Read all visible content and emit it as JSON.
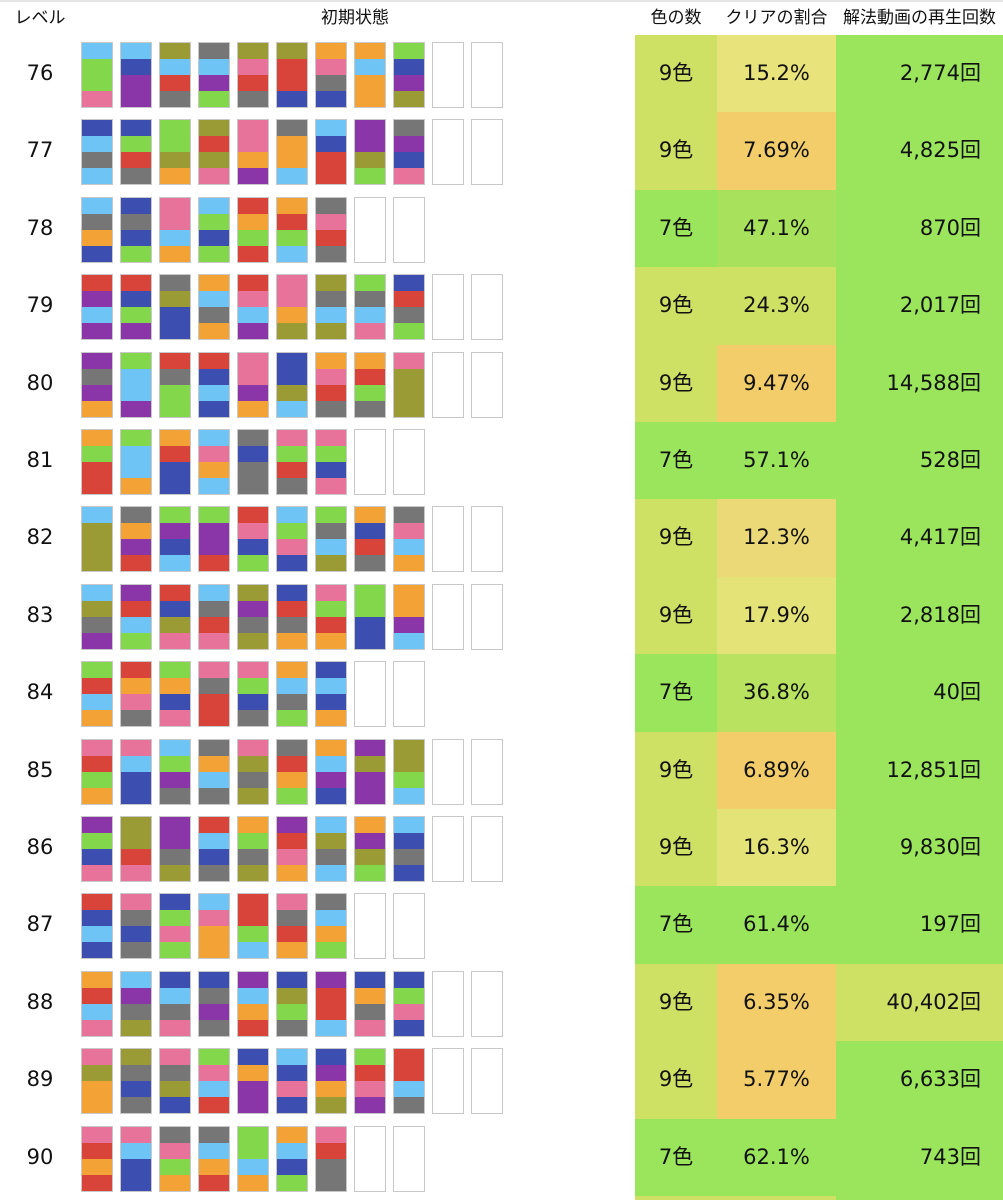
{
  "headers": {
    "level": "レベル",
    "initial_state": "初期状態",
    "colors": "色の数",
    "clear_rate": "クリアの割合",
    "video_views": "解法動画の再生回数"
  },
  "palette": {
    "sky": "#6ec5f5",
    "lime": "#82d74b",
    "pink": "#e8739a",
    "purple": "#8a35a8",
    "blue": "#3c4fb0",
    "olive": "#9a9b34",
    "red": "#d8443a",
    "gray": "#767676",
    "orange": "#f3a235"
  },
  "rows": [
    {
      "level": "76",
      "colors_count": "9色",
      "clear_rate": "15.2%",
      "video_views": "2,774回",
      "bg": [
        "#cfe165",
        "#e8e37a",
        "#9be55c"
      ],
      "tubes": [
        [
          "pink",
          "lime",
          "lime",
          "sky"
        ],
        [
          "purple",
          "purple",
          "blue",
          "sky"
        ],
        [
          "gray",
          "red",
          "sky",
          "olive"
        ],
        [
          "lime",
          "purple",
          "sky",
          "gray"
        ],
        [
          "gray",
          "red",
          "pink",
          "olive"
        ],
        [
          "blue",
          "red",
          "red",
          "olive"
        ],
        [
          "blue",
          "gray",
          "pink",
          "orange"
        ],
        [
          "orange",
          "orange",
          "sky",
          "orange"
        ],
        [
          "olive",
          "purple",
          "blue",
          "lime"
        ],
        [],
        []
      ]
    },
    {
      "level": "77",
      "colors_count": "9色",
      "clear_rate": "7.69%",
      "video_views": "4,825回",
      "bg": [
        "#cfe165",
        "#f2cd6a",
        "#9be55c"
      ],
      "tubes": [
        [
          "sky",
          "gray",
          "sky",
          "blue"
        ],
        [
          "gray",
          "red",
          "lime",
          "blue"
        ],
        [
          "orange",
          "olive",
          "lime",
          "lime"
        ],
        [
          "pink",
          "olive",
          "red",
          "olive"
        ],
        [
          "purple",
          "orange",
          "pink",
          "pink"
        ],
        [
          "sky",
          "orange",
          "orange",
          "gray"
        ],
        [
          "red",
          "red",
          "blue",
          "sky"
        ],
        [
          "lime",
          "olive",
          "purple",
          "purple"
        ],
        [
          "pink",
          "blue",
          "purple",
          "gray"
        ],
        [],
        []
      ]
    },
    {
      "level": "78",
      "colors_count": "7色",
      "clear_rate": "47.1%",
      "video_views": "870回",
      "bg": [
        "#9be55c",
        "#a8e25c",
        "#9be55c"
      ],
      "tubes": [
        [
          "blue",
          "orange",
          "gray",
          "sky"
        ],
        [
          "lime",
          "blue",
          "gray",
          "blue"
        ],
        [
          "orange",
          "sky",
          "pink",
          "pink"
        ],
        [
          "lime",
          "blue",
          "lime",
          "sky"
        ],
        [
          "red",
          "lime",
          "orange",
          "red"
        ],
        [
          "sky",
          "lime",
          "red",
          "orange"
        ],
        [
          "gray",
          "red",
          "pink",
          "gray"
        ],
        [],
        []
      ]
    },
    {
      "level": "79",
      "colors_count": "9色",
      "clear_rate": "24.3%",
      "video_views": "2,017回",
      "bg": [
        "#cfe165",
        "#cfe165",
        "#9be55c"
      ],
      "tubes": [
        [
          "purple",
          "sky",
          "purple",
          "red"
        ],
        [
          "purple",
          "lime",
          "blue",
          "red"
        ],
        [
          "blue",
          "blue",
          "olive",
          "gray"
        ],
        [
          "orange",
          "gray",
          "sky",
          "orange"
        ],
        [
          "purple",
          "sky",
          "pink",
          "red"
        ],
        [
          "olive",
          "orange",
          "pink",
          "pink"
        ],
        [
          "olive",
          "sky",
          "gray",
          "olive"
        ],
        [
          "pink",
          "sky",
          "gray",
          "lime"
        ],
        [
          "lime",
          "gray",
          "red",
          "blue"
        ],
        [],
        []
      ]
    },
    {
      "level": "80",
      "colors_count": "9色",
      "clear_rate": "9.47%",
      "video_views": "14,588回",
      "bg": [
        "#cfe165",
        "#f2cd6a",
        "#9be55c"
      ],
      "tubes": [
        [
          "orange",
          "purple",
          "gray",
          "purple"
        ],
        [
          "purple",
          "sky",
          "sky",
          "lime"
        ],
        [
          "lime",
          "lime",
          "gray",
          "red"
        ],
        [
          "blue",
          "sky",
          "blue",
          "red"
        ],
        [
          "orange",
          "purple",
          "pink",
          "pink"
        ],
        [
          "sky",
          "olive",
          "blue",
          "blue"
        ],
        [
          "gray",
          "red",
          "pink",
          "orange"
        ],
        [
          "gray",
          "lime",
          "red",
          "orange"
        ],
        [
          "olive",
          "olive",
          "olive",
          "pink"
        ],
        [],
        []
      ]
    },
    {
      "level": "81",
      "colors_count": "7色",
      "clear_rate": "57.1%",
      "video_views": "528回",
      "bg": [
        "#9be55c",
        "#9be55c",
        "#9be55c"
      ],
      "tubes": [
        [
          "red",
          "red",
          "lime",
          "orange"
        ],
        [
          "orange",
          "sky",
          "sky",
          "lime"
        ],
        [
          "blue",
          "blue",
          "red",
          "orange"
        ],
        [
          "sky",
          "orange",
          "pink",
          "sky"
        ],
        [
          "gray",
          "gray",
          "blue",
          "gray"
        ],
        [
          "gray",
          "red",
          "lime",
          "pink"
        ],
        [
          "pink",
          "blue",
          "lime",
          "pink"
        ],
        [],
        []
      ]
    },
    {
      "level": "82",
      "colors_count": "9色",
      "clear_rate": "12.3%",
      "video_views": "4,417回",
      "bg": [
        "#cfe165",
        "#ead976",
        "#9be55c"
      ],
      "tubes": [
        [
          "olive",
          "olive",
          "olive",
          "sky"
        ],
        [
          "red",
          "purple",
          "orange",
          "gray"
        ],
        [
          "sky",
          "blue",
          "purple",
          "lime"
        ],
        [
          "red",
          "purple",
          "purple",
          "lime"
        ],
        [
          "lime",
          "blue",
          "pink",
          "red"
        ],
        [
          "blue",
          "pink",
          "lime",
          "sky"
        ],
        [
          "olive",
          "sky",
          "gray",
          "lime"
        ],
        [
          "gray",
          "red",
          "blue",
          "orange"
        ],
        [
          "orange",
          "sky",
          "pink",
          "gray"
        ],
        [],
        []
      ]
    },
    {
      "level": "83",
      "colors_count": "9色",
      "clear_rate": "17.9%",
      "video_views": "2,818回",
      "bg": [
        "#cfe165",
        "#e4e378",
        "#9be55c"
      ],
      "tubes": [
        [
          "purple",
          "gray",
          "olive",
          "sky"
        ],
        [
          "lime",
          "sky",
          "red",
          "purple"
        ],
        [
          "pink",
          "olive",
          "blue",
          "red"
        ],
        [
          "pink",
          "red",
          "gray",
          "sky"
        ],
        [
          "olive",
          "gray",
          "purple",
          "olive"
        ],
        [
          "orange",
          "gray",
          "red",
          "blue"
        ],
        [
          "orange",
          "red",
          "lime",
          "pink"
        ],
        [
          "blue",
          "blue",
          "lime",
          "lime"
        ],
        [
          "sky",
          "purple",
          "orange",
          "orange"
        ],
        [],
        []
      ]
    },
    {
      "level": "84",
      "colors_count": "7色",
      "clear_rate": "36.8%",
      "video_views": "40回",
      "bg": [
        "#9be55c",
        "#b8e260",
        "#9be55c"
      ],
      "tubes": [
        [
          "orange",
          "sky",
          "red",
          "lime"
        ],
        [
          "gray",
          "pink",
          "orange",
          "red"
        ],
        [
          "pink",
          "blue",
          "orange",
          "lime"
        ],
        [
          "red",
          "red",
          "gray",
          "pink"
        ],
        [
          "gray",
          "blue",
          "lime",
          "pink"
        ],
        [
          "lime",
          "gray",
          "sky",
          "orange"
        ],
        [
          "orange",
          "blue",
          "sky",
          "blue"
        ],
        [],
        []
      ]
    },
    {
      "level": "85",
      "colors_count": "9色",
      "clear_rate": "6.89%",
      "video_views": "12,851回",
      "bg": [
        "#cfe165",
        "#f2cd6a",
        "#9be55c"
      ],
      "tubes": [
        [
          "orange",
          "lime",
          "red",
          "pink"
        ],
        [
          "blue",
          "blue",
          "sky",
          "pink"
        ],
        [
          "gray",
          "purple",
          "lime",
          "sky"
        ],
        [
          "gray",
          "sky",
          "orange",
          "gray"
        ],
        [
          "olive",
          "gray",
          "olive",
          "pink"
        ],
        [
          "lime",
          "orange",
          "red",
          "gray"
        ],
        [
          "blue",
          "purple",
          "sky",
          "orange"
        ],
        [
          "purple",
          "purple",
          "olive",
          "purple"
        ],
        [
          "sky",
          "lime",
          "olive",
          "olive"
        ],
        [],
        []
      ]
    },
    {
      "level": "86",
      "colors_count": "9色",
      "clear_rate": "16.3%",
      "video_views": "9,830回",
      "bg": [
        "#cfe165",
        "#e4e378",
        "#9be55c"
      ],
      "tubes": [
        [
          "pink",
          "blue",
          "lime",
          "purple"
        ],
        [
          "pink",
          "red",
          "olive",
          "olive"
        ],
        [
          "olive",
          "gray",
          "purple",
          "purple"
        ],
        [
          "gray",
          "blue",
          "sky",
          "red"
        ],
        [
          "olive",
          "gray",
          "lime",
          "orange"
        ],
        [
          "orange",
          "pink",
          "red",
          "purple"
        ],
        [
          "sky",
          "gray",
          "olive",
          "sky"
        ],
        [
          "lime",
          "olive",
          "purple",
          "orange"
        ],
        [
          "blue",
          "gray",
          "blue",
          "sky"
        ],
        [],
        []
      ]
    },
    {
      "level": "87",
      "colors_count": "7色",
      "clear_rate": "61.4%",
      "video_views": "197回",
      "bg": [
        "#9be55c",
        "#9be55c",
        "#9be55c"
      ],
      "tubes": [
        [
          "blue",
          "sky",
          "blue",
          "red"
        ],
        [
          "gray",
          "blue",
          "gray",
          "pink"
        ],
        [
          "lime",
          "pink",
          "lime",
          "blue"
        ],
        [
          "orange",
          "orange",
          "pink",
          "sky"
        ],
        [
          "sky",
          "lime",
          "red",
          "red"
        ],
        [
          "orange",
          "red",
          "gray",
          "pink"
        ],
        [
          "lime",
          "orange",
          "sky",
          "gray"
        ],
        [],
        []
      ]
    },
    {
      "level": "88",
      "colors_count": "9色",
      "clear_rate": "6.35%",
      "video_views": "40,402回",
      "bg": [
        "#cfe165",
        "#f2cd6a",
        "#cfe165"
      ],
      "tubes": [
        [
          "pink",
          "sky",
          "red",
          "orange"
        ],
        [
          "olive",
          "gray",
          "purple",
          "sky"
        ],
        [
          "pink",
          "gray",
          "sky",
          "blue"
        ],
        [
          "gray",
          "purple",
          "gray",
          "blue"
        ],
        [
          "red",
          "orange",
          "sky",
          "purple"
        ],
        [
          "gray",
          "lime",
          "olive",
          "blue"
        ],
        [
          "sky",
          "red",
          "red",
          "purple"
        ],
        [
          "pink",
          "gray",
          "orange",
          "blue"
        ],
        [
          "blue",
          "pink",
          "lime",
          "blue"
        ],
        [],
        []
      ]
    },
    {
      "level": "89",
      "colors_count": "9色",
      "clear_rate": "5.77%",
      "video_views": "6,633回",
      "bg": [
        "#cfe165",
        "#f2cd6a",
        "#9be55c"
      ],
      "tubes": [
        [
          "orange",
          "orange",
          "olive",
          "pink"
        ],
        [
          "gray",
          "blue",
          "gray",
          "olive"
        ],
        [
          "blue",
          "olive",
          "gray",
          "pink"
        ],
        [
          "red",
          "sky",
          "pink",
          "lime"
        ],
        [
          "purple",
          "purple",
          "orange",
          "blue"
        ],
        [
          "blue",
          "pink",
          "blue",
          "sky"
        ],
        [
          "olive",
          "orange",
          "purple",
          "blue"
        ],
        [
          "purple",
          "pink",
          "red",
          "lime"
        ],
        [
          "gray",
          "sky",
          "red",
          "red"
        ],
        [],
        []
      ]
    },
    {
      "level": "90",
      "colors_count": "7色",
      "clear_rate": "62.1%",
      "video_views": "743回",
      "bg": [
        "#9be55c",
        "#9be55c",
        "#9be55c"
      ],
      "tubes": [
        [
          "red",
          "orange",
          "red",
          "pink"
        ],
        [
          "blue",
          "blue",
          "sky",
          "pink"
        ],
        [
          "orange",
          "lime",
          "pink",
          "gray"
        ],
        [
          "red",
          "orange",
          "sky",
          "gray"
        ],
        [
          "orange",
          "sky",
          "lime",
          "lime"
        ],
        [
          "lime",
          "blue",
          "sky",
          "orange"
        ],
        [
          "gray",
          "gray",
          "red",
          "pink"
        ],
        [],
        []
      ]
    }
  ]
}
